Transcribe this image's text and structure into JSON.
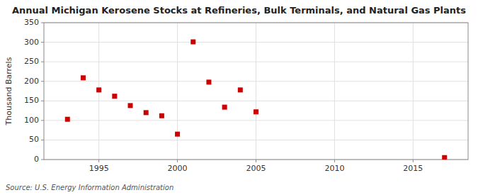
{
  "chart_data": {
    "type": "scatter",
    "title": "Annual Michigan Kerosene Stocks at Refineries, Bulk Terminals, and Natural Gas Plants",
    "ylabel": "Thousand Barrels",
    "source": "Source: U.S. Energy Information Administration",
    "x": [
      1993,
      1994,
      1995,
      1996,
      1997,
      1998,
      1999,
      2000,
      2001,
      2002,
      2003,
      2004,
      2005,
      2017
    ],
    "values": [
      103,
      209,
      178,
      162,
      138,
      120,
      112,
      65,
      301,
      198,
      134,
      178,
      122,
      5
    ],
    "color": "#cc0000",
    "marker": "square",
    "xlim": [
      1991.5,
      2018.5
    ],
    "ylim": [
      0,
      350
    ],
    "xticks": [
      1995,
      2000,
      2005,
      2010,
      2015
    ],
    "yticks": [
      0,
      50,
      100,
      150,
      200,
      250,
      300,
      350
    ],
    "grid": true
  }
}
